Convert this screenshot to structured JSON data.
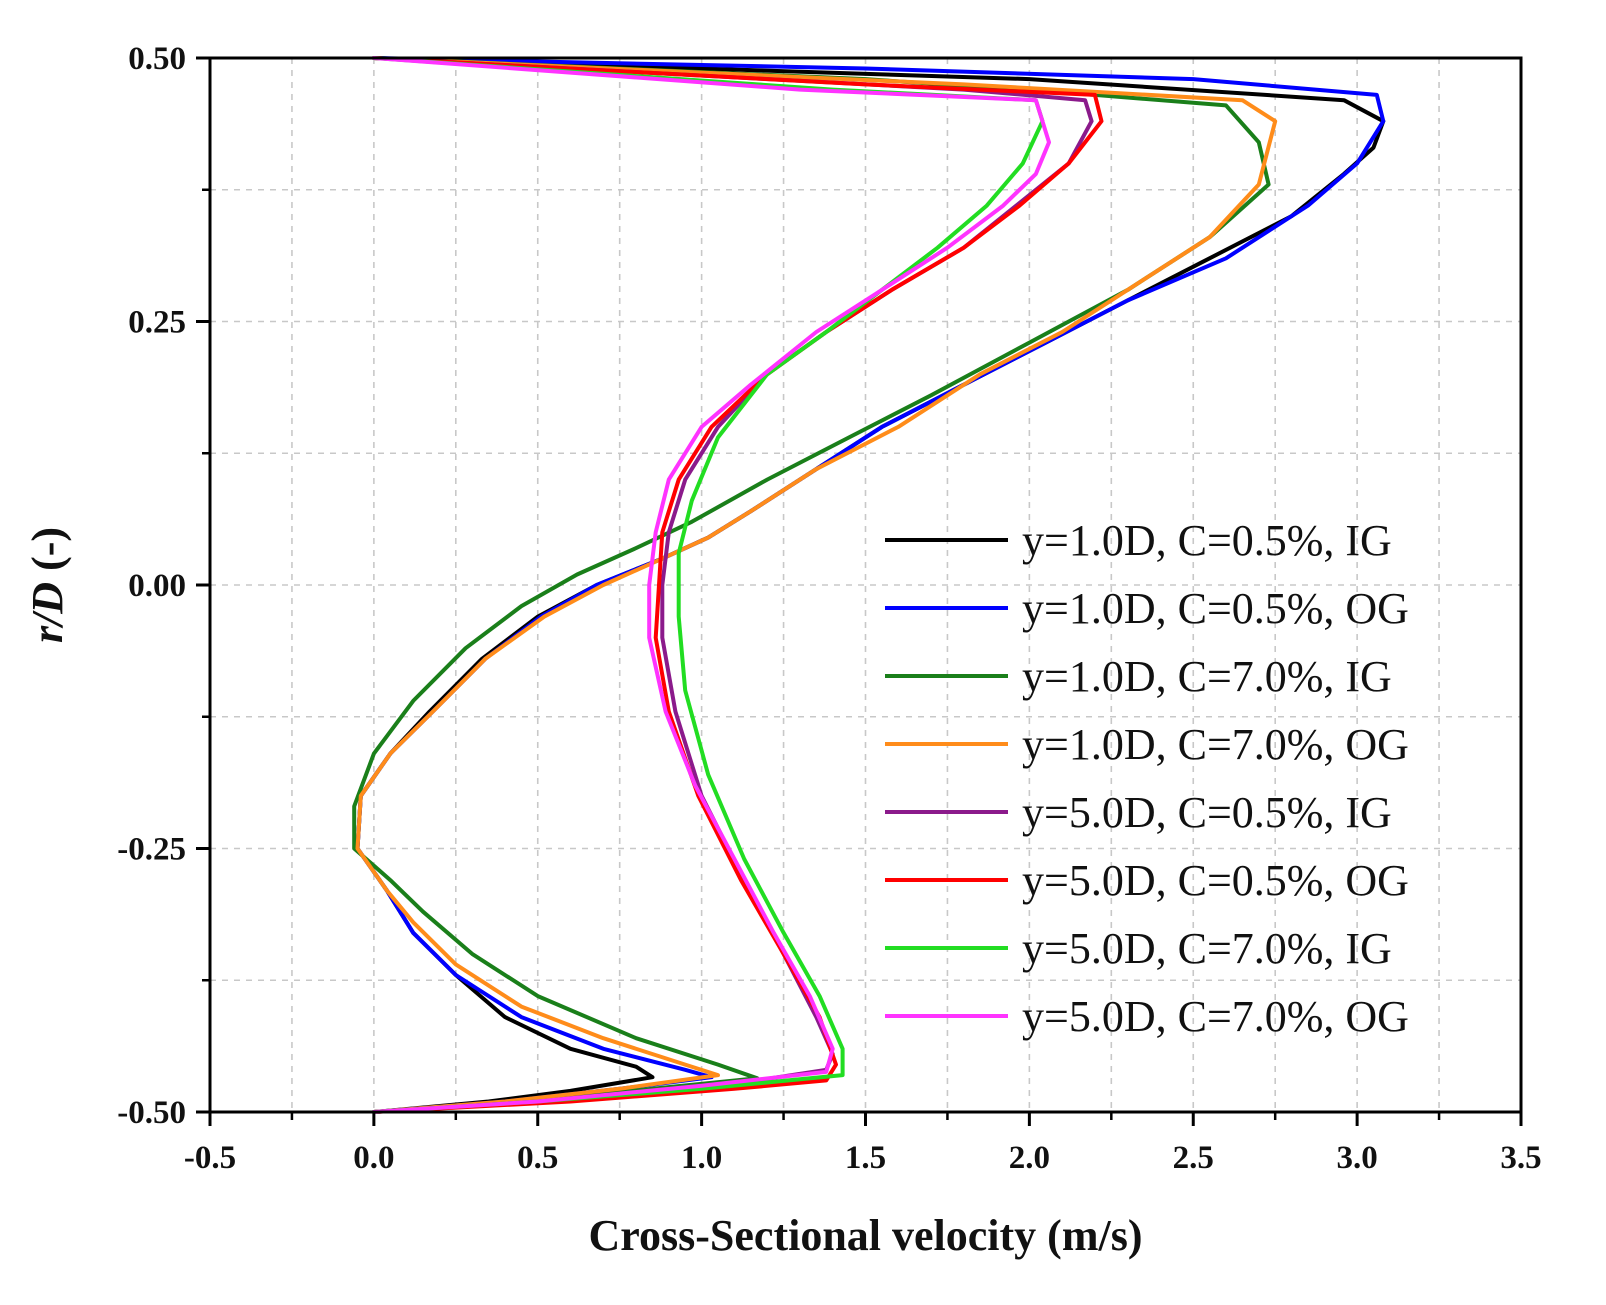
{
  "chart_data": {
    "type": "line",
    "xlabel": "Cross-Sectional velocity (m/s)",
    "ylabel_italic": "r/D",
    "ylabel_suffix": " (-)",
    "xlim": [
      -0.5,
      3.5
    ],
    "ylim": [
      -0.5,
      0.5
    ],
    "x_ticks": [
      "-0.5",
      "0.0",
      "0.5",
      "1.0",
      "1.5",
      "2.0",
      "2.5",
      "3.0",
      "3.5"
    ],
    "y_ticks": [
      "-0.50",
      "-0.25",
      "0.00",
      "0.25",
      "0.50"
    ],
    "grid": true,
    "legend_position": "right",
    "series": [
      {
        "name": "y=1.0D, C=0.5%, IG",
        "color": "#000000",
        "points": [
          [
            0.0,
            -0.5
          ],
          [
            0.35,
            -0.49
          ],
          [
            0.6,
            -0.48
          ],
          [
            0.85,
            -0.467
          ],
          [
            0.8,
            -0.457
          ],
          [
            0.6,
            -0.44
          ],
          [
            0.4,
            -0.41
          ],
          [
            0.25,
            -0.37
          ],
          [
            0.12,
            -0.33
          ],
          [
            0.04,
            -0.29
          ],
          [
            -0.05,
            -0.25
          ],
          [
            -0.04,
            -0.2
          ],
          [
            0.05,
            -0.16
          ],
          [
            0.17,
            -0.12
          ],
          [
            0.33,
            -0.07
          ],
          [
            0.5,
            -0.03
          ],
          [
            0.68,
            0.0
          ],
          [
            0.88,
            0.025
          ],
          [
            1.02,
            0.045
          ],
          [
            1.15,
            0.07
          ],
          [
            1.35,
            0.11
          ],
          [
            1.55,
            0.15
          ],
          [
            1.8,
            0.19
          ],
          [
            2.05,
            0.23
          ],
          [
            2.3,
            0.27
          ],
          [
            2.55,
            0.31
          ],
          [
            2.8,
            0.35
          ],
          [
            2.96,
            0.39
          ],
          [
            3.05,
            0.415
          ],
          [
            3.08,
            0.44
          ],
          [
            2.96,
            0.46
          ],
          [
            2.0,
            0.48
          ],
          [
            0.0,
            0.5
          ]
        ]
      },
      {
        "name": "y=1.0D, C=0.5%, OG",
        "color": "#0000ff",
        "points": [
          [
            0.0,
            -0.5
          ],
          [
            0.4,
            -0.49
          ],
          [
            0.75,
            -0.478
          ],
          [
            1.03,
            -0.467
          ],
          [
            0.95,
            -0.46
          ],
          [
            0.7,
            -0.44
          ],
          [
            0.45,
            -0.41
          ],
          [
            0.25,
            -0.37
          ],
          [
            0.12,
            -0.33
          ],
          [
            0.04,
            -0.29
          ],
          [
            -0.05,
            -0.25
          ],
          [
            -0.04,
            -0.2
          ],
          [
            0.05,
            -0.16
          ],
          [
            0.18,
            -0.12
          ],
          [
            0.34,
            -0.07
          ],
          [
            0.51,
            -0.03
          ],
          [
            0.68,
            0.0
          ],
          [
            0.88,
            0.025
          ],
          [
            1.02,
            0.045
          ],
          [
            1.15,
            0.07
          ],
          [
            1.35,
            0.11
          ],
          [
            1.55,
            0.15
          ],
          [
            1.8,
            0.19
          ],
          [
            2.05,
            0.23
          ],
          [
            2.3,
            0.27
          ],
          [
            2.6,
            0.31
          ],
          [
            2.85,
            0.36
          ],
          [
            3.0,
            0.4
          ],
          [
            3.08,
            0.44
          ],
          [
            3.06,
            0.465
          ],
          [
            2.5,
            0.48
          ],
          [
            1.5,
            0.49
          ],
          [
            0.0,
            0.5
          ]
        ]
      },
      {
        "name": "y=1.0D, C=7.0%, IG",
        "color": "#1a7f1a",
        "points": [
          [
            0.0,
            -0.5
          ],
          [
            0.45,
            -0.49
          ],
          [
            0.85,
            -0.478
          ],
          [
            1.17,
            -0.468
          ],
          [
            1.05,
            -0.455
          ],
          [
            0.8,
            -0.43
          ],
          [
            0.5,
            -0.39
          ],
          [
            0.3,
            -0.35
          ],
          [
            0.15,
            -0.31
          ],
          [
            0.05,
            -0.28
          ],
          [
            -0.06,
            -0.25
          ],
          [
            -0.06,
            -0.21
          ],
          [
            0.0,
            -0.16
          ],
          [
            0.12,
            -0.11
          ],
          [
            0.28,
            -0.06
          ],
          [
            0.45,
            -0.02
          ],
          [
            0.62,
            0.01
          ],
          [
            0.8,
            0.035
          ],
          [
            0.97,
            0.06
          ],
          [
            1.2,
            0.1
          ],
          [
            1.45,
            0.14
          ],
          [
            1.7,
            0.18
          ],
          [
            2.0,
            0.23
          ],
          [
            2.3,
            0.28
          ],
          [
            2.55,
            0.33
          ],
          [
            2.73,
            0.38
          ],
          [
            2.7,
            0.42
          ],
          [
            2.6,
            0.455
          ],
          [
            2.2,
            0.465
          ],
          [
            1.5,
            0.48
          ],
          [
            0.0,
            0.5
          ]
        ]
      },
      {
        "name": "y=1.0D, C=7.0%, OG",
        "color": "#ff8c1a",
        "points": [
          [
            0.0,
            -0.5
          ],
          [
            0.4,
            -0.49
          ],
          [
            0.75,
            -0.478
          ],
          [
            1.05,
            -0.465
          ],
          [
            0.95,
            -0.455
          ],
          [
            0.7,
            -0.43
          ],
          [
            0.45,
            -0.4
          ],
          [
            0.25,
            -0.36
          ],
          [
            0.12,
            -0.32
          ],
          [
            0.04,
            -0.29
          ],
          [
            -0.05,
            -0.25
          ],
          [
            -0.04,
            -0.2
          ],
          [
            0.05,
            -0.16
          ],
          [
            0.18,
            -0.12
          ],
          [
            0.34,
            -0.07
          ],
          [
            0.52,
            -0.03
          ],
          [
            0.7,
            0.0
          ],
          [
            0.88,
            0.025
          ],
          [
            1.02,
            0.045
          ],
          [
            1.15,
            0.07
          ],
          [
            1.35,
            0.11
          ],
          [
            1.6,
            0.15
          ],
          [
            1.85,
            0.2
          ],
          [
            2.1,
            0.24
          ],
          [
            2.35,
            0.29
          ],
          [
            2.55,
            0.33
          ],
          [
            2.7,
            0.38
          ],
          [
            2.75,
            0.44
          ],
          [
            2.65,
            0.46
          ],
          [
            1.8,
            0.475
          ],
          [
            0.0,
            0.5
          ]
        ]
      },
      {
        "name": "y=5.0D, C=0.5%, IG",
        "color": "#8b1a8b",
        "points": [
          [
            0.0,
            -0.5
          ],
          [
            0.5,
            -0.49
          ],
          [
            1.0,
            -0.478
          ],
          [
            1.38,
            -0.46
          ],
          [
            1.4,
            -0.445
          ],
          [
            1.35,
            -0.41
          ],
          [
            1.25,
            -0.35
          ],
          [
            1.13,
            -0.28
          ],
          [
            1.0,
            -0.2
          ],
          [
            0.92,
            -0.12
          ],
          [
            0.88,
            -0.05
          ],
          [
            0.88,
            0.0
          ],
          [
            0.9,
            0.05
          ],
          [
            0.95,
            0.1
          ],
          [
            1.05,
            0.15
          ],
          [
            1.2,
            0.2
          ],
          [
            1.38,
            0.24
          ],
          [
            1.58,
            0.28
          ],
          [
            1.8,
            0.32
          ],
          [
            1.96,
            0.36
          ],
          [
            2.12,
            0.4
          ],
          [
            2.19,
            0.44
          ],
          [
            2.17,
            0.46
          ],
          [
            1.8,
            0.47
          ],
          [
            0.0,
            0.5
          ]
        ]
      },
      {
        "name": "y=5.0D, C=0.5%, OG",
        "color": "#ff0000",
        "points": [
          [
            0.0,
            -0.5
          ],
          [
            0.6,
            -0.49
          ],
          [
            1.1,
            -0.478
          ],
          [
            1.38,
            -0.47
          ],
          [
            1.41,
            -0.455
          ],
          [
            1.36,
            -0.41
          ],
          [
            1.25,
            -0.35
          ],
          [
            1.12,
            -0.28
          ],
          [
            0.99,
            -0.2
          ],
          [
            0.9,
            -0.12
          ],
          [
            0.86,
            -0.05
          ],
          [
            0.87,
            0.0
          ],
          [
            0.88,
            0.05
          ],
          [
            0.93,
            0.1
          ],
          [
            1.03,
            0.15
          ],
          [
            1.2,
            0.2
          ],
          [
            1.38,
            0.24
          ],
          [
            1.58,
            0.28
          ],
          [
            1.8,
            0.32
          ],
          [
            1.97,
            0.36
          ],
          [
            2.12,
            0.4
          ],
          [
            2.22,
            0.44
          ],
          [
            2.2,
            0.465
          ],
          [
            1.5,
            0.475
          ],
          [
            0.0,
            0.5
          ]
        ]
      },
      {
        "name": "y=5.0D, C=7.0%, IG",
        "color": "#22dd22",
        "points": [
          [
            0.0,
            -0.5
          ],
          [
            0.5,
            -0.49
          ],
          [
            1.0,
            -0.478
          ],
          [
            1.43,
            -0.465
          ],
          [
            1.43,
            -0.44
          ],
          [
            1.36,
            -0.39
          ],
          [
            1.25,
            -0.33
          ],
          [
            1.13,
            -0.26
          ],
          [
            1.02,
            -0.18
          ],
          [
            0.95,
            -0.1
          ],
          [
            0.93,
            -0.03
          ],
          [
            0.93,
            0.03
          ],
          [
            0.97,
            0.08
          ],
          [
            1.05,
            0.14
          ],
          [
            1.2,
            0.2
          ],
          [
            1.38,
            0.24
          ],
          [
            1.55,
            0.28
          ],
          [
            1.72,
            0.32
          ],
          [
            1.87,
            0.36
          ],
          [
            1.98,
            0.4
          ],
          [
            2.04,
            0.44
          ],
          [
            2.02,
            0.46
          ],
          [
            1.4,
            0.47
          ],
          [
            0.0,
            0.5
          ]
        ]
      },
      {
        "name": "y=5.0D, C=7.0%, OG",
        "color": "#ff33ff",
        "points": [
          [
            0.0,
            -0.5
          ],
          [
            0.5,
            -0.49
          ],
          [
            1.0,
            -0.475
          ],
          [
            1.38,
            -0.462
          ],
          [
            1.4,
            -0.44
          ],
          [
            1.33,
            -0.39
          ],
          [
            1.22,
            -0.33
          ],
          [
            1.1,
            -0.26
          ],
          [
            0.98,
            -0.19
          ],
          [
            0.89,
            -0.12
          ],
          [
            0.84,
            -0.05
          ],
          [
            0.84,
            0.0
          ],
          [
            0.86,
            0.05
          ],
          [
            0.9,
            0.1
          ],
          [
            1.0,
            0.15
          ],
          [
            1.15,
            0.19
          ],
          [
            1.35,
            0.24
          ],
          [
            1.55,
            0.28
          ],
          [
            1.75,
            0.32
          ],
          [
            1.92,
            0.36
          ],
          [
            2.02,
            0.39
          ],
          [
            2.06,
            0.42
          ],
          [
            2.02,
            0.46
          ],
          [
            1.3,
            0.47
          ],
          [
            0.0,
            0.5
          ]
        ]
      }
    ]
  }
}
